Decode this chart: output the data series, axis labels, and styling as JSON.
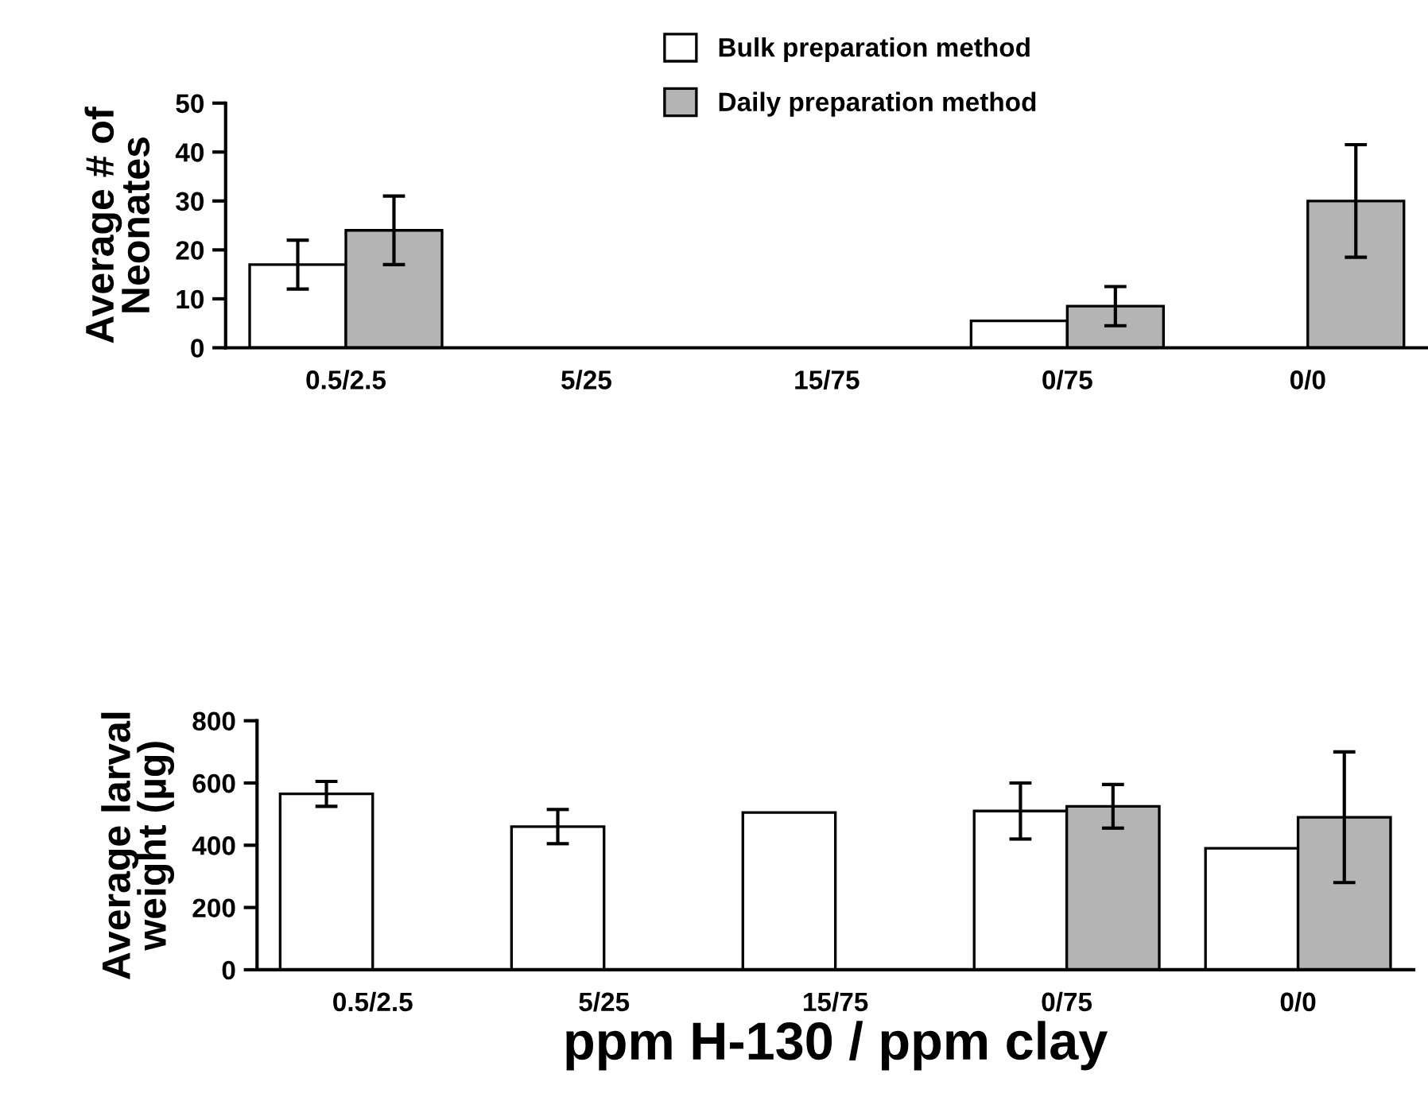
{
  "chart_data": [
    {
      "type": "bar",
      "ylabel": "Average # of\nNeonates",
      "categories": [
        "0.5/2.5",
        "5/25",
        "15/75",
        "0/75",
        "0/0"
      ],
      "ylim": [
        0,
        50
      ],
      "yticks": [
        0,
        10,
        20,
        30,
        40,
        50
      ],
      "legend": "top",
      "grid": false,
      "series": [
        {
          "name": "Bulk preparation method",
          "color": "#ffffff",
          "values": [
            17,
            null,
            null,
            5.5,
            null
          ],
          "errors": [
            5,
            null,
            null,
            null,
            null
          ]
        },
        {
          "name": "Daily preparation method",
          "color": "#b4b4b4",
          "values": [
            24,
            null,
            null,
            8.5,
            30
          ],
          "errors": [
            7,
            null,
            null,
            4,
            11.5
          ]
        }
      ]
    },
    {
      "type": "bar",
      "ylabel": "Average larval\nweight (µg)",
      "xlabel": "ppm H-130 / ppm clay",
      "categories": [
        "0.5/2.5",
        "5/25",
        "15/75",
        "0/75",
        "0/0"
      ],
      "ylim": [
        0,
        800
      ],
      "yticks": [
        0,
        200,
        400,
        600,
        800
      ],
      "grid": false,
      "series": [
        {
          "color": "#ffffff",
          "values": [
            565,
            460,
            505,
            510,
            390
          ],
          "errors": [
            40,
            55,
            null,
            90,
            null
          ]
        },
        {
          "color": "#b4b4b4",
          "values": [
            null,
            null,
            null,
            525,
            490
          ],
          "errors": [
            null,
            null,
            null,
            70,
            210
          ]
        }
      ]
    }
  ]
}
